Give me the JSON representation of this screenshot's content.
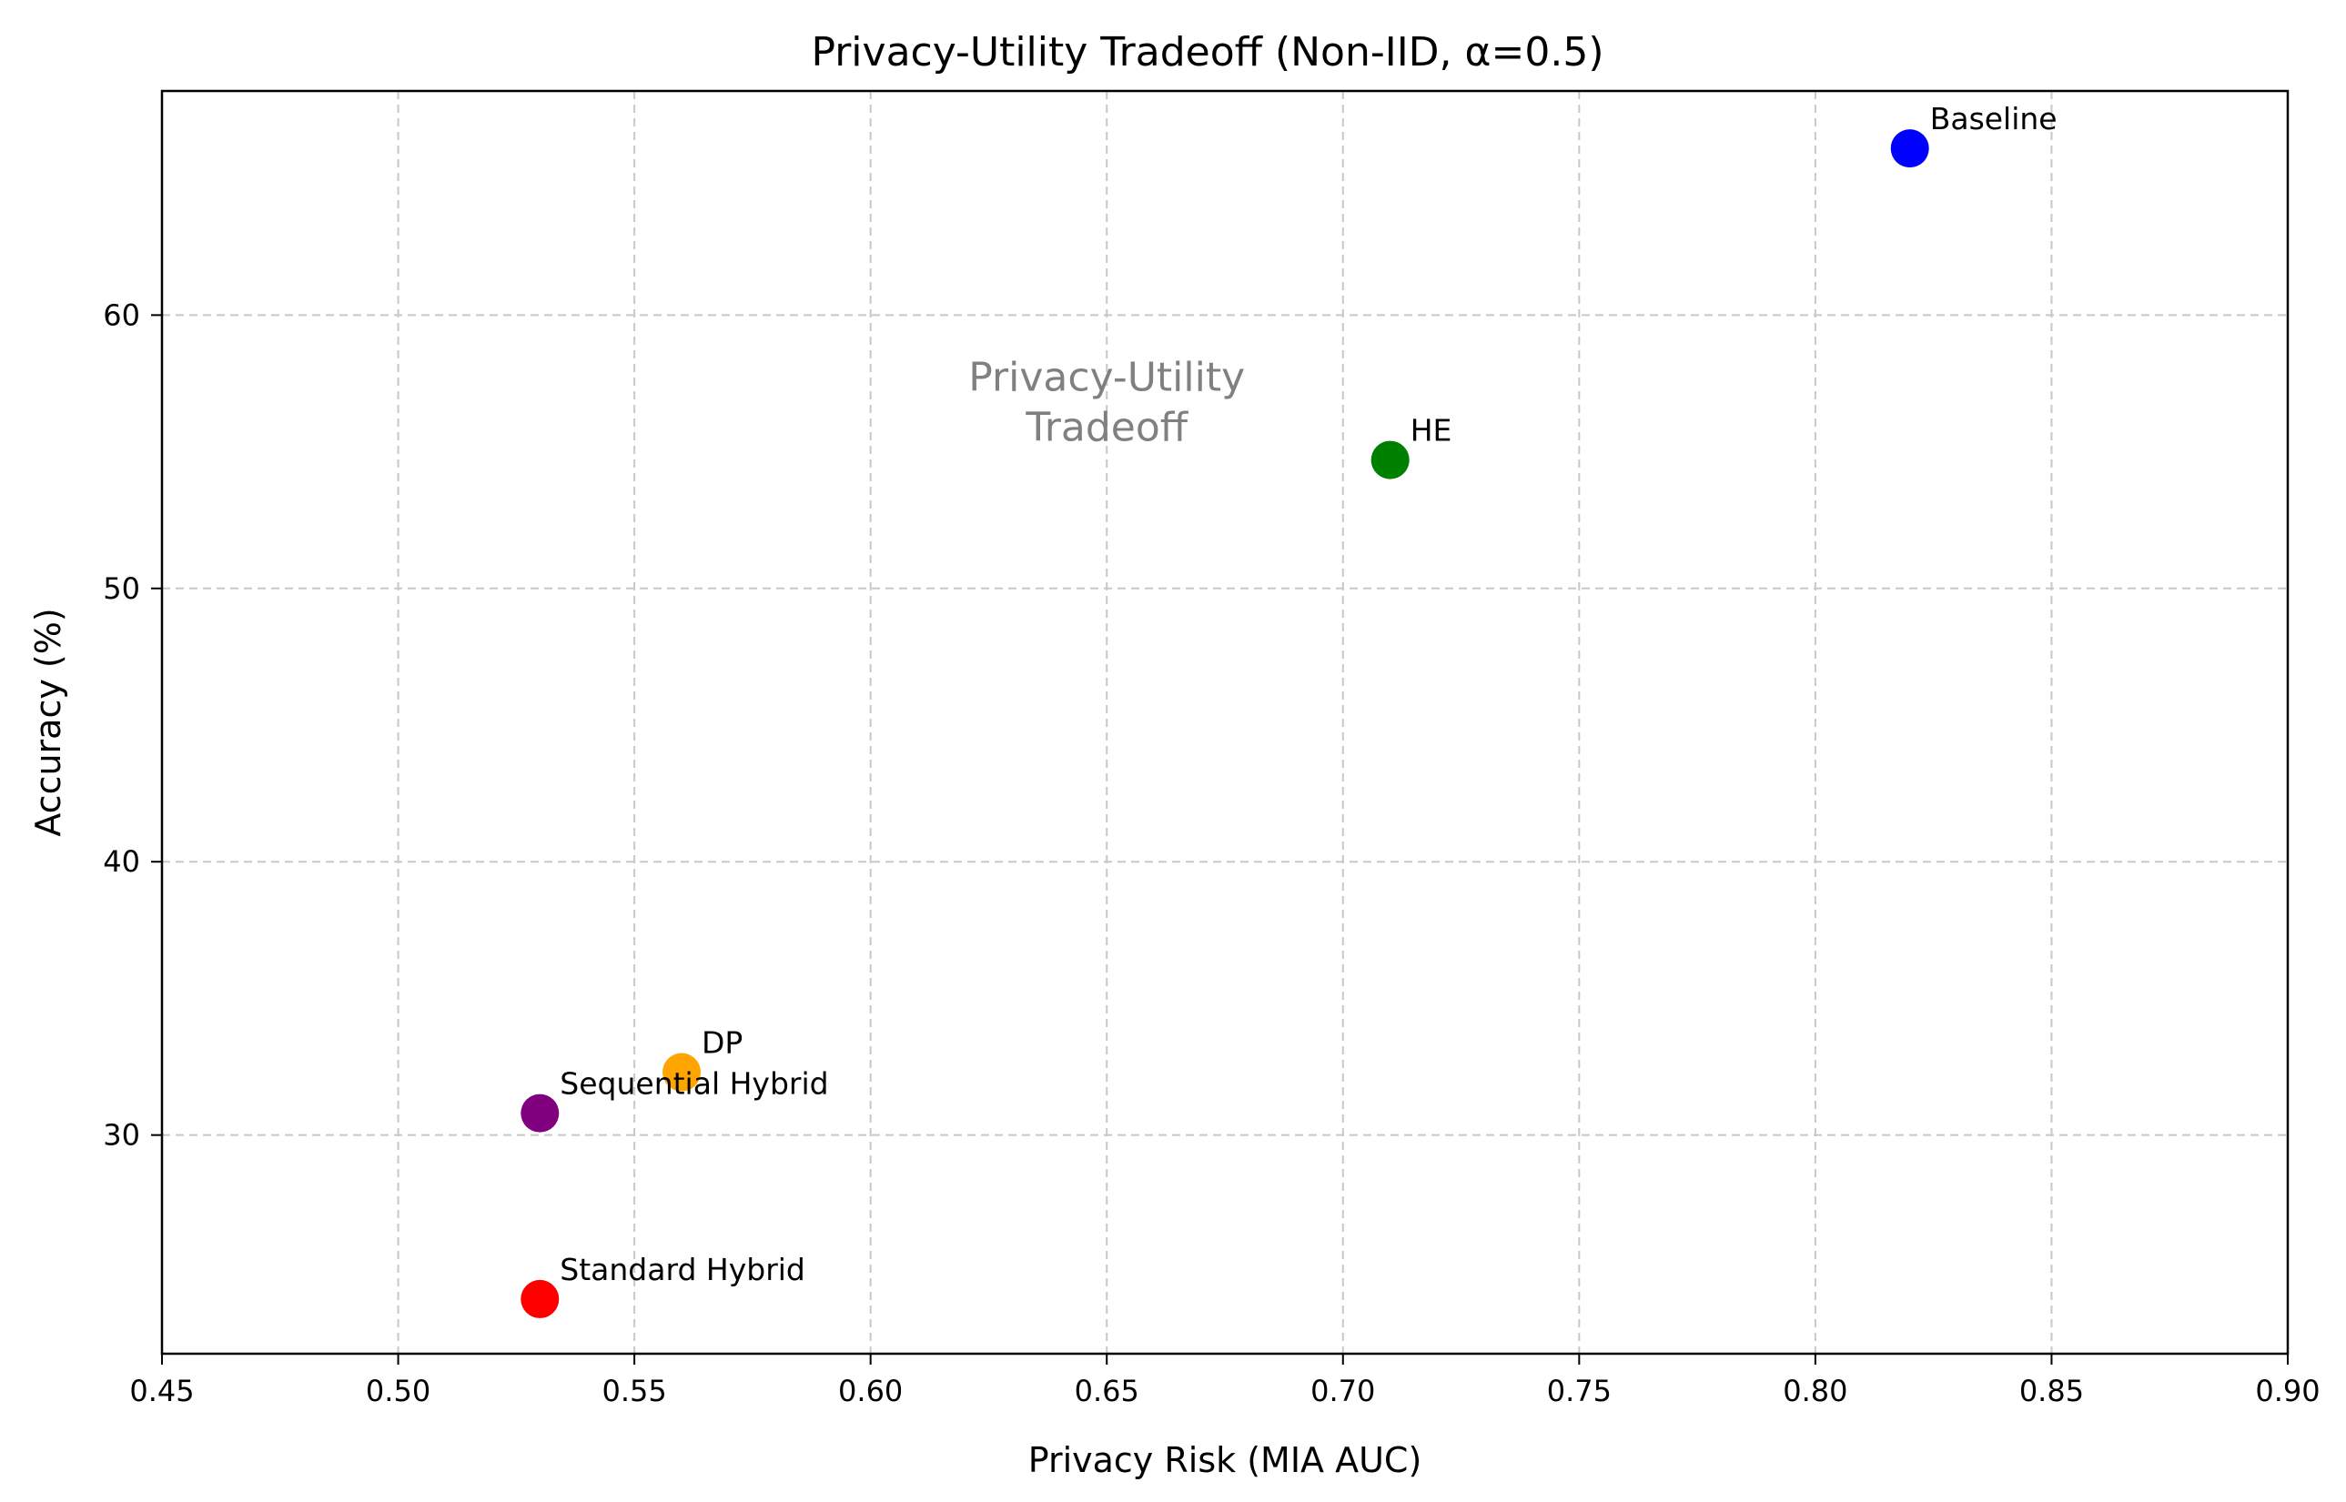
{
  "chart_data": {
    "type": "scatter",
    "title": "Privacy-Utility Tradeoff (Non-IID, α=0.5)",
    "xlabel": "Privacy Risk (MIA AUC)",
    "ylabel": "Accuracy (%)",
    "xlim": [
      0.45,
      0.9
    ],
    "ylim": [
      22,
      68.2
    ],
    "xticks": [
      0.45,
      0.5,
      0.55,
      0.6,
      0.65,
      0.7,
      0.75,
      0.8,
      0.85,
      0.9
    ],
    "xtick_labels": [
      "0.45",
      "0.50",
      "0.55",
      "0.60",
      "0.65",
      "0.70",
      "0.75",
      "0.80",
      "0.85",
      "0.90"
    ],
    "yticks": [
      30,
      40,
      50,
      60
    ],
    "ytick_labels": [
      "30",
      "40",
      "50",
      "60"
    ],
    "grid": true,
    "points": [
      {
        "label": "Baseline",
        "x": 0.82,
        "y": 66.1,
        "color": "#0000ff"
      },
      {
        "label": "HE",
        "x": 0.71,
        "y": 54.7,
        "color": "#008000"
      },
      {
        "label": "DP",
        "x": 0.56,
        "y": 32.3,
        "color": "#ffa500"
      },
      {
        "label": "Sequential Hybrid",
        "x": 0.53,
        "y": 30.8,
        "color": "#800080"
      },
      {
        "label": "Standard Hybrid",
        "x": 0.53,
        "y": 24.0,
        "color": "#ff0000"
      }
    ],
    "annotation": {
      "lines": [
        "Privacy-Utility",
        "Tradeoff"
      ],
      "x": 0.65,
      "y": 56.5
    }
  }
}
